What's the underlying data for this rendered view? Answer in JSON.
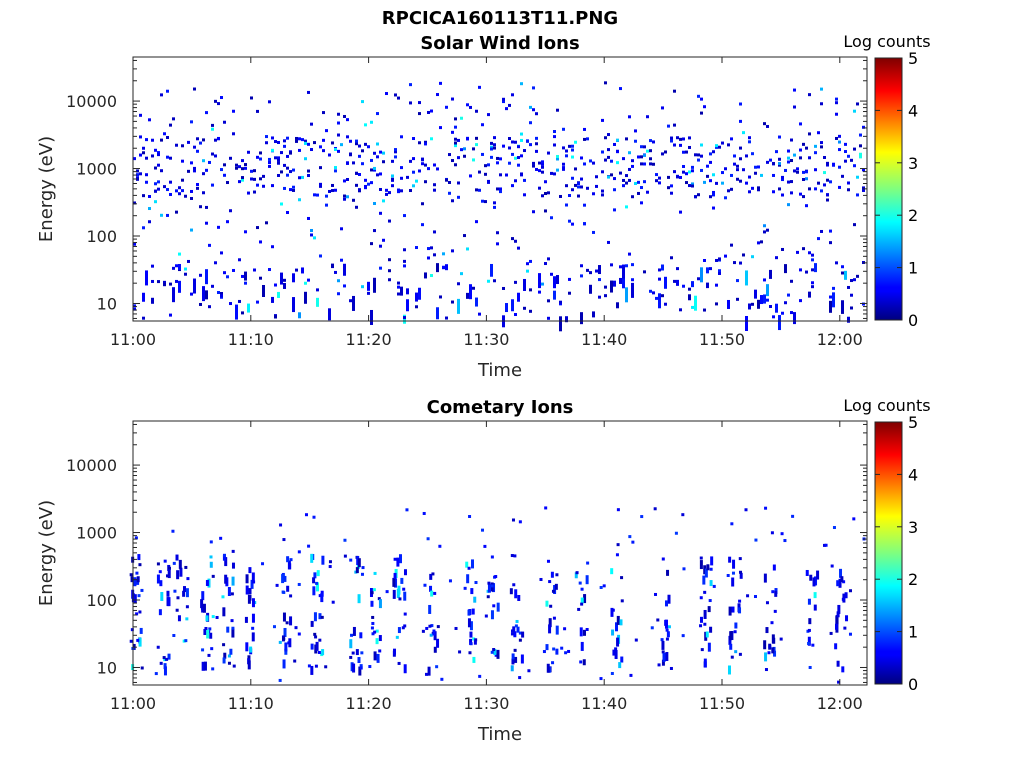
{
  "figure": {
    "title": "RPCICA160113T11.PNG"
  },
  "chart_data": [
    {
      "type": "heatmap",
      "title": "Solar Wind Ions",
      "xlabel": "Time",
      "ylabel": "Energy (eV)",
      "x_ticks": [
        "11:00",
        "11:10",
        "11:20",
        "11:30",
        "11:40",
        "11:50",
        "12:00"
      ],
      "x_range_minutes": [
        0,
        62
      ],
      "y_ticks": [
        "10",
        "100",
        "1000",
        "10000"
      ],
      "y_scale": "log",
      "y_range": [
        5.5,
        45000
      ],
      "colorbar": {
        "label": "Log counts",
        "ticks": [
          "0",
          "1",
          "2",
          "3",
          "4",
          "5"
        ],
        "range": [
          0,
          5
        ],
        "colormap": "jet"
      },
      "description_points": "sparse counts 0–2 log across 10 eV – 20 keV, densest near 1 keV and 10 eV"
    },
    {
      "type": "heatmap",
      "title": "Cometary Ions",
      "xlabel": "Time",
      "ylabel": "Energy (eV)",
      "x_ticks": [
        "11:00",
        "11:10",
        "11:20",
        "11:30",
        "11:40",
        "11:50",
        "12:00"
      ],
      "x_range_minutes": [
        0,
        62
      ],
      "y_ticks": [
        "10",
        "100",
        "1000",
        "10000"
      ],
      "y_scale": "log",
      "y_range": [
        5.5,
        45000
      ],
      "colorbar": {
        "label": "Log counts",
        "ticks": [
          "0",
          "1",
          "2",
          "3",
          "4",
          "5"
        ],
        "range": [
          0,
          5
        ],
        "colormap": "jet"
      },
      "description_points": "vertical streaks of counts 0–2 log mostly between 10 eV and 1 keV"
    }
  ]
}
